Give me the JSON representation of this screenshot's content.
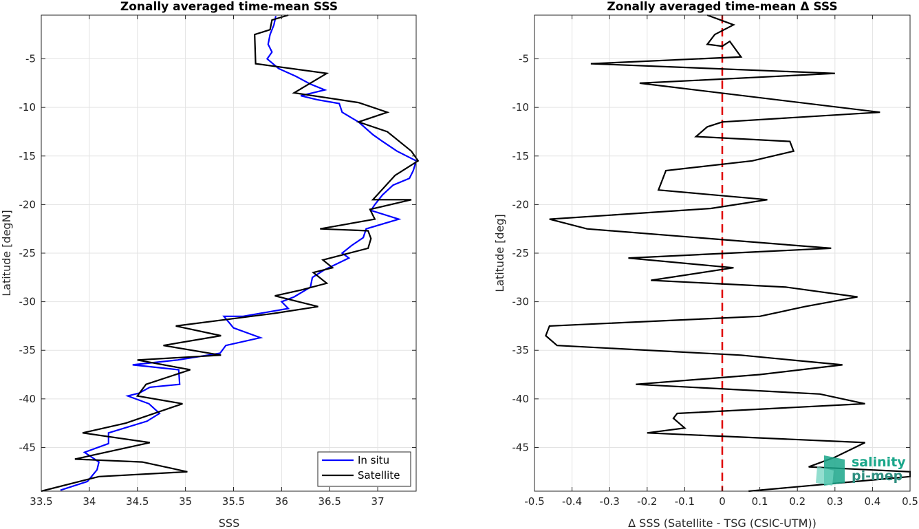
{
  "chart_data": [
    {
      "type": "line",
      "title": "Zonally averaged time-mean SSS",
      "xlabel": "SSS",
      "ylabel": "Latitude [degN]",
      "xlim": [
        33.5,
        37.4
      ],
      "ylim": [
        -49.5,
        -0.5
      ],
      "xticks": [
        33.5,
        34,
        34.5,
        35,
        35.5,
        36,
        36.5,
        37
      ],
      "yticks": [
        -5,
        -10,
        -15,
        -20,
        -25,
        -30,
        -35,
        -40,
        -45
      ],
      "grid": true,
      "legend_position": "bottom-right",
      "series": [
        {
          "name": "In situ",
          "color": "#0000ff",
          "points": [
            [
              35.94,
              -0.6
            ],
            [
              35.92,
              -1.5
            ],
            [
              35.88,
              -2.5
            ],
            [
              35.86,
              -3.5
            ],
            [
              35.9,
              -4.3
            ],
            [
              35.85,
              -5.0
            ],
            [
              35.97,
              -6.0
            ],
            [
              36.15,
              -6.8
            ],
            [
              36.3,
              -7.6
            ],
            [
              36.45,
              -8.2
            ],
            [
              36.2,
              -8.8
            ],
            [
              36.37,
              -9.2
            ],
            [
              36.6,
              -9.6
            ],
            [
              36.63,
              -10.5
            ],
            [
              36.8,
              -11.5
            ],
            [
              36.95,
              -12.8
            ],
            [
              37.05,
              -13.5
            ],
            [
              37.2,
              -14.5
            ],
            [
              37.4,
              -15.5
            ],
            [
              37.37,
              -16.5
            ],
            [
              37.33,
              -17.3
            ],
            [
              37.16,
              -18.0
            ],
            [
              37.05,
              -19.0
            ],
            [
              36.97,
              -20.0
            ],
            [
              36.93,
              -20.6
            ],
            [
              37.22,
              -21.5
            ],
            [
              36.88,
              -22.5
            ],
            [
              36.85,
              -23.4
            ],
            [
              36.73,
              -24.2
            ],
            [
              36.63,
              -25.0
            ],
            [
              36.7,
              -25.5
            ],
            [
              36.45,
              -26.7
            ],
            [
              36.32,
              -27.5
            ],
            [
              36.3,
              -28.5
            ],
            [
              36.13,
              -29.5
            ],
            [
              36.0,
              -30.0
            ],
            [
              36.07,
              -30.7
            ],
            [
              35.6,
              -31.5
            ],
            [
              35.4,
              -31.5
            ],
            [
              35.5,
              -32.7
            ],
            [
              35.78,
              -33.7
            ],
            [
              35.42,
              -34.5
            ],
            [
              35.36,
              -35.3
            ],
            [
              34.92,
              -36.0
            ],
            [
              34.45,
              -36.5
            ],
            [
              34.93,
              -37.0
            ],
            [
              34.94,
              -38.5
            ],
            [
              34.63,
              -38.8
            ],
            [
              34.52,
              -39.4
            ],
            [
              34.4,
              -39.7
            ],
            [
              34.62,
              -40.5
            ],
            [
              34.73,
              -41.5
            ],
            [
              34.6,
              -42.3
            ],
            [
              34.2,
              -43.5
            ],
            [
              34.2,
              -44.6
            ],
            [
              33.95,
              -45.5
            ],
            [
              34.1,
              -46.5
            ],
            [
              34.08,
              -47.3
            ],
            [
              33.98,
              -48.5
            ],
            [
              33.7,
              -49.4
            ]
          ]
        },
        {
          "name": "Satellite",
          "color": "#000000",
          "points": [
            [
              36.07,
              -0.5
            ],
            [
              35.9,
              -1.0
            ],
            [
              35.88,
              -2.0
            ],
            [
              35.72,
              -2.5
            ],
            [
              35.73,
              -5.5
            ],
            [
              36.47,
              -6.5
            ],
            [
              36.13,
              -8.5
            ],
            [
              36.8,
              -9.5
            ],
            [
              37.1,
              -10.5
            ],
            [
              36.8,
              -11.5
            ],
            [
              37.1,
              -12.5
            ],
            [
              37.35,
              -14.5
            ],
            [
              37.42,
              -15.5
            ],
            [
              37.18,
              -17.0
            ],
            [
              36.95,
              -19.5
            ],
            [
              37.35,
              -19.5
            ],
            [
              36.92,
              -20.5
            ],
            [
              36.97,
              -21.5
            ],
            [
              36.4,
              -22.5
            ],
            [
              36.9,
              -22.7
            ],
            [
              36.93,
              -23.5
            ],
            [
              36.9,
              -24.5
            ],
            [
              36.43,
              -25.7
            ],
            [
              36.53,
              -26.5
            ],
            [
              36.33,
              -27.0
            ],
            [
              36.47,
              -28.1
            ],
            [
              36.2,
              -28.8
            ],
            [
              35.93,
              -29.4
            ],
            [
              36.38,
              -30.5
            ],
            [
              35.92,
              -31.2
            ],
            [
              34.9,
              -32.5
            ],
            [
              35.37,
              -33.5
            ],
            [
              34.77,
              -34.5
            ],
            [
              35.37,
              -35.5
            ],
            [
              34.5,
              -36.0
            ],
            [
              35.05,
              -37.0
            ],
            [
              34.59,
              -38.5
            ],
            [
              34.5,
              -39.7
            ],
            [
              34.97,
              -40.5
            ],
            [
              34.38,
              -42.5
            ],
            [
              33.93,
              -43.5
            ],
            [
              34.63,
              -44.5
            ],
            [
              33.85,
              -46.2
            ],
            [
              34.55,
              -46.5
            ],
            [
              35.02,
              -47.5
            ],
            [
              34.1,
              -48.0
            ],
            [
              33.5,
              -49.5
            ]
          ]
        }
      ]
    },
    {
      "type": "line",
      "title": "Zonally averaged time-mean Δ SSS",
      "xlabel": "Δ SSS (Satellite - TSG (CSIC-UTM))",
      "ylabel": "Latitude [deg]",
      "xlim": [
        -0.5,
        0.5
      ],
      "ylim": [
        -49.5,
        -0.5
      ],
      "xticks": [
        -0.5,
        -0.4,
        -0.3,
        -0.2,
        -0.1,
        0,
        0.1,
        0.2,
        0.3,
        0.4,
        0.5
      ],
      "xticklabels": [
        "-0.5",
        "-0.4",
        "-0.3",
        "-0.2",
        "-0.1",
        "0",
        "0.1",
        "0.2",
        "0.3",
        "0.4",
        "0.5"
      ],
      "yticks": [
        -5,
        -10,
        -15,
        -20,
        -25,
        -30,
        -35,
        -40,
        -45
      ],
      "grid": true,
      "zero_line": {
        "x": 0,
        "color": "#e00000",
        "style": "dashed"
      },
      "series": [
        {
          "color": "#000000",
          "points": [
            [
              -0.04,
              -0.5
            ],
            [
              0.03,
              -1.5
            ],
            [
              -0.02,
              -2.5
            ],
            [
              -0.04,
              -3.5
            ],
            [
              0.0,
              -3.7
            ],
            [
              0.02,
              -3.2
            ],
            [
              0.05,
              -4.8
            ],
            [
              -0.35,
              -5.5
            ],
            [
              0.3,
              -6.5
            ],
            [
              -0.22,
              -7.5
            ],
            [
              0.42,
              -10.5
            ],
            [
              0.0,
              -11.5
            ],
            [
              -0.04,
              -12.0
            ],
            [
              -0.07,
              -13.0
            ],
            [
              0.18,
              -13.5
            ],
            [
              0.19,
              -14.5
            ],
            [
              0.08,
              -15.5
            ],
            [
              -0.15,
              -16.5
            ],
            [
              -0.17,
              -18.5
            ],
            [
              0.12,
              -19.5
            ],
            [
              -0.03,
              -20.4
            ],
            [
              -0.46,
              -21.5
            ],
            [
              -0.36,
              -22.5
            ],
            [
              0.29,
              -24.5
            ],
            [
              -0.25,
              -25.5
            ],
            [
              0.0,
              -26.4
            ],
            [
              0.03,
              -26.5
            ],
            [
              -0.19,
              -27.8
            ],
            [
              0.17,
              -28.5
            ],
            [
              0.36,
              -29.5
            ],
            [
              0.22,
              -30.5
            ],
            [
              0.1,
              -31.5
            ],
            [
              -0.46,
              -32.5
            ],
            [
              -0.47,
              -33.5
            ],
            [
              -0.44,
              -34.5
            ],
            [
              0.05,
              -35.5
            ],
            [
              0.32,
              -36.5
            ],
            [
              0.1,
              -37.5
            ],
            [
              -0.23,
              -38.5
            ],
            [
              0.26,
              -39.5
            ],
            [
              0.38,
              -40.5
            ],
            [
              -0.12,
              -41.5
            ],
            [
              -0.13,
              -42.0
            ],
            [
              -0.1,
              -43.0
            ],
            [
              -0.2,
              -43.5
            ],
            [
              0.38,
              -44.5
            ],
            [
              0.3,
              -46.0
            ],
            [
              0.23,
              -47.0
            ],
            [
              0.5,
              -47.5
            ],
            [
              0.5,
              -48.0
            ],
            [
              0.07,
              -49.5
            ]
          ]
        }
      ]
    }
  ],
  "logo": {
    "line1": "salinity",
    "line2": "pi-mep"
  }
}
